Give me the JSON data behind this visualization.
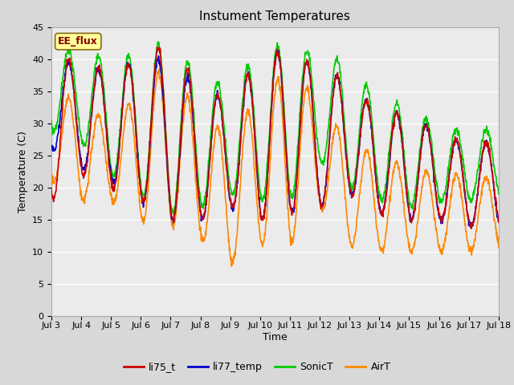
{
  "title": "Instument Temperatures",
  "xlabel": "Time",
  "ylabel": "Temperature (C)",
  "ylim": [
    0,
    45
  ],
  "yticks": [
    0,
    5,
    10,
    15,
    20,
    25,
    30,
    35,
    40,
    45
  ],
  "date_labels": [
    "Jul 3",
    "Jul 4",
    "Jul 5",
    "Jul 6",
    "Jul 7",
    "Jul 8",
    "Jul 9",
    "Jul 10",
    "Jul 11",
    "Jul 12",
    "Jul 13",
    "Jul 14",
    "Jul 15",
    "Jul 16",
    "Jul 17",
    "Jul 18"
  ],
  "colors": {
    "li75_t": "#cc0000",
    "li77_temp": "#0000cc",
    "SonicT": "#00cc00",
    "AirT": "#ff8800"
  },
  "annotation_text": "EE_flux",
  "annotation_color": "#8B0000",
  "annotation_bg": "#ffff99",
  "annotation_edge": "#8B6914",
  "fig_bg": "#d8d8d8",
  "plot_bg": "#ebebeb",
  "title_fontsize": 11,
  "axis_fontsize": 9,
  "tick_fontsize": 8,
  "line_width": 1.2,
  "grid_color": "#ffffff",
  "grid_linewidth": 1.0
}
